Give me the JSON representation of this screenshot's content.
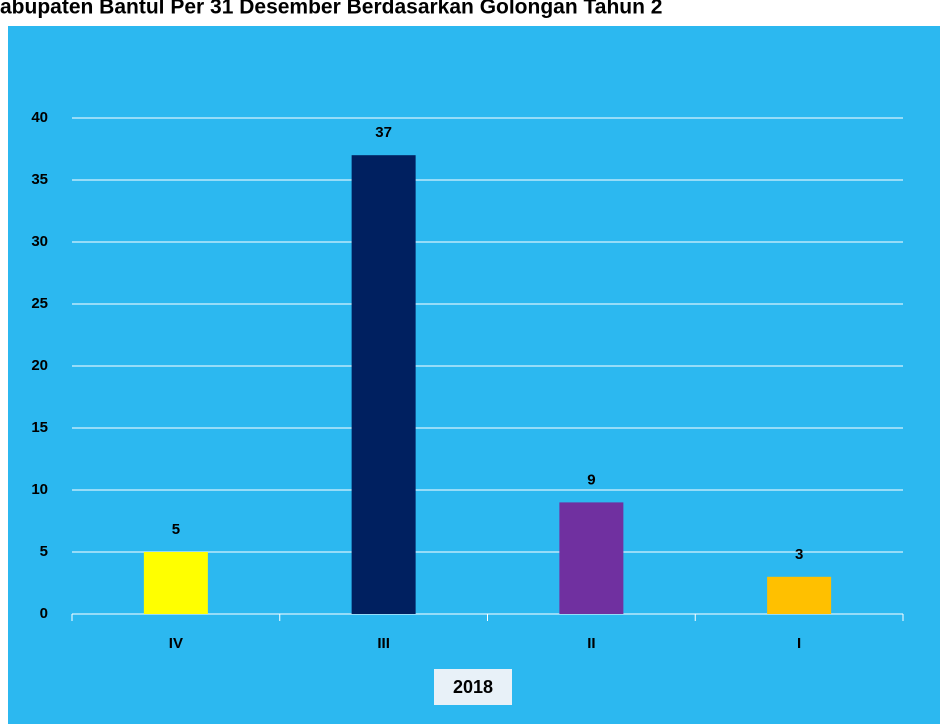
{
  "chart_data": {
    "type": "bar",
    "title": "abupaten Bantul Per 31 Desember Berdasarkan Golongan Tahun 2",
    "categories": [
      "IV",
      "III",
      "II",
      "I"
    ],
    "values": [
      5,
      37,
      9,
      3
    ],
    "colors": [
      "#ffff00",
      "#002060",
      "#7030a0",
      "#ffc000"
    ],
    "x_label": "2018",
    "ylim": [
      0,
      40
    ],
    "yticks": [
      0,
      5,
      10,
      15,
      20,
      25,
      30,
      35,
      40
    ],
    "grid": true
  }
}
